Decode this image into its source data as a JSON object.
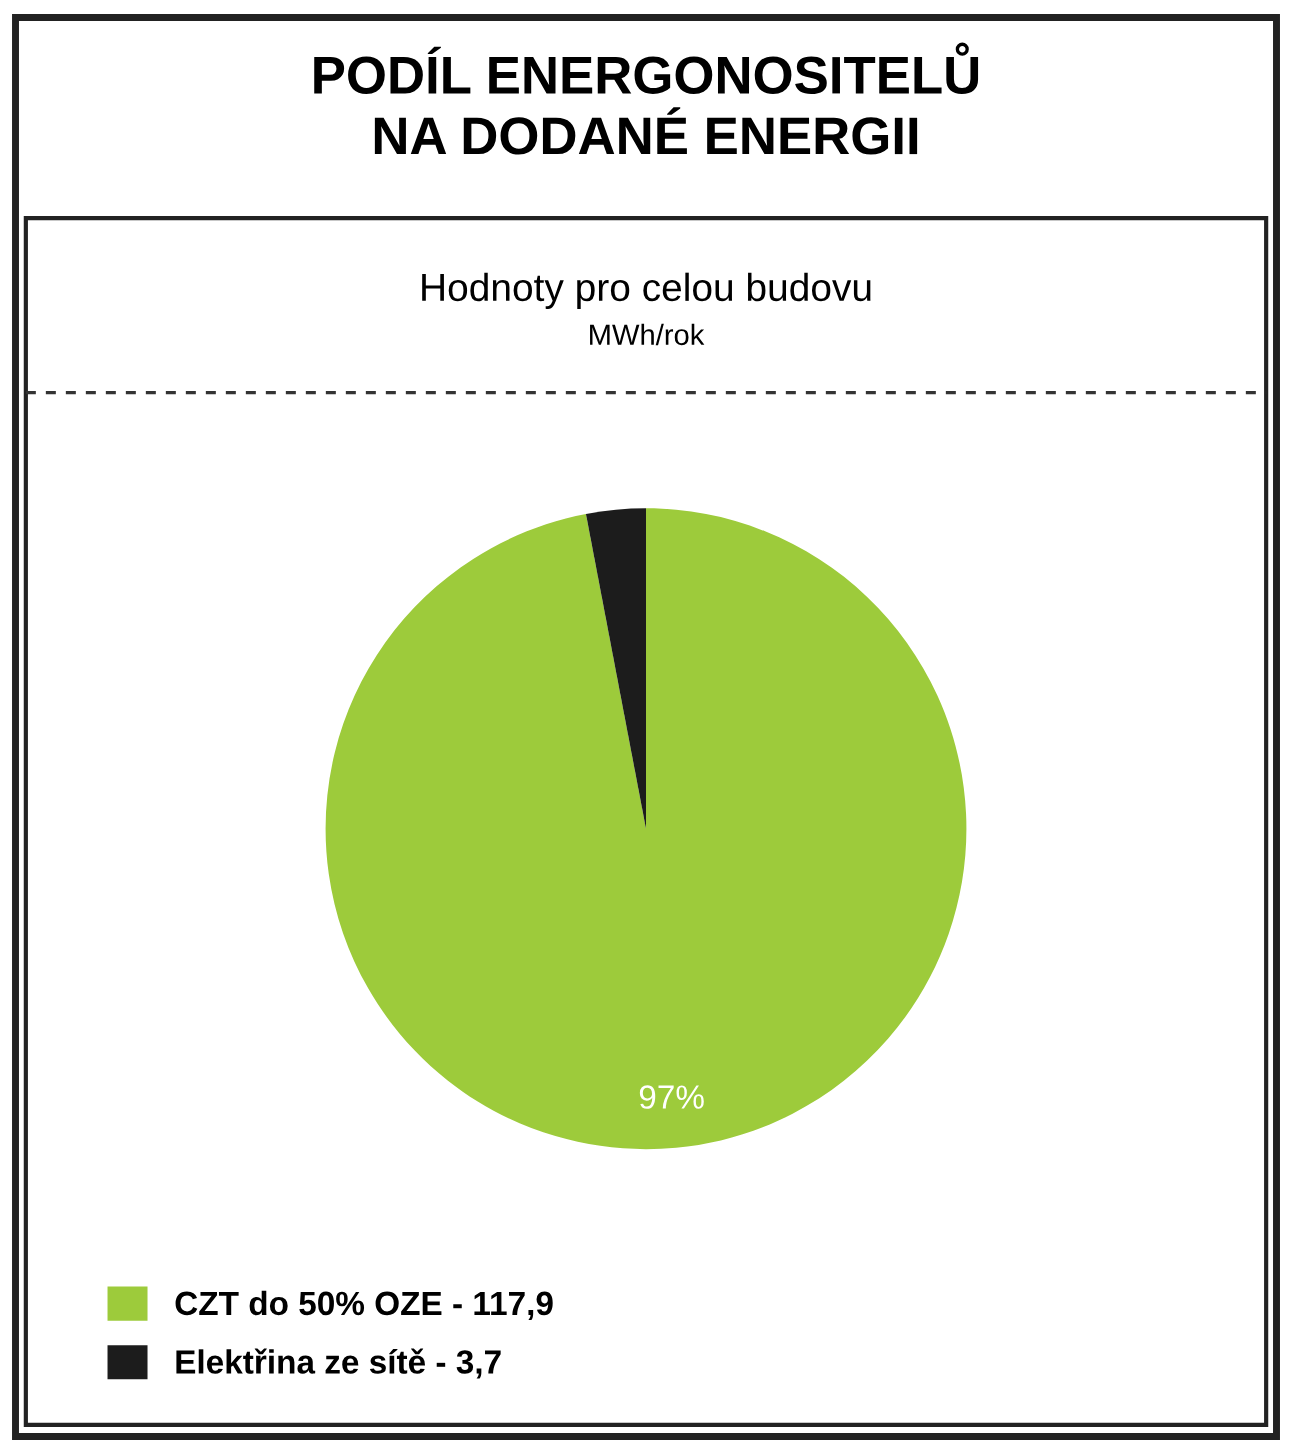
{
  "chart_data": {
    "type": "pie",
    "title": "PODÍL ENERGONOSITELŮ\nNA DODANÉ ENERGII",
    "subtitle": "Hodnoty pro celou budovu",
    "annotations": [
      "MWh/rok"
    ],
    "categories": [
      "CZT do 50% OZE - 117,9",
      "Elektřina ze sítě - 3,7"
    ],
    "values": [
      97,
      3
    ],
    "colors": [
      "#9dcb3b",
      "#1c1c1c"
    ],
    "value_labels": [
      "97%",
      null
    ],
    "legend": "bottom left"
  }
}
